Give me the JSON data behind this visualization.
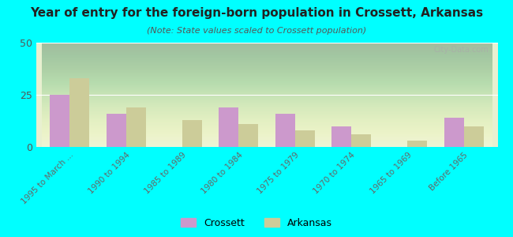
{
  "title": "Year of entry for the foreign-born population in Crossett, Arkansas",
  "subtitle": "(Note: State values scaled to Crossett population)",
  "categories": [
    "1995 to March ...",
    "1990 to 1994",
    "1985 to 1989",
    "1980 to 1984",
    "1975 to 1979",
    "1970 to 1974",
    "1965 to 1969",
    "Before 1965"
  ],
  "crossett_values": [
    25,
    16,
    0,
    19,
    16,
    10,
    0,
    14
  ],
  "arkansas_values": [
    33,
    19,
    13,
    11,
    8,
    6,
    3,
    10
  ],
  "crossett_color": "#cc99cc",
  "arkansas_color": "#cccc99",
  "background_color": "#00ffff",
  "plot_bg_top": "#e8f0d0",
  "plot_bg_bottom": "#f8fdf0",
  "ylim": [
    0,
    50
  ],
  "yticks": [
    0,
    25,
    50
  ],
  "bar_width": 0.35,
  "watermark": "City-Data.com"
}
